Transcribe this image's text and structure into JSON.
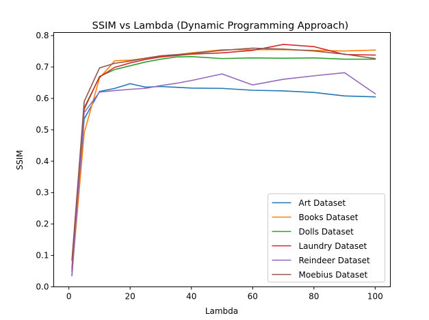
{
  "chart_data": {
    "type": "line",
    "title": "SSIM vs Lambda (Dynamic Programming Approach)",
    "xlabel": "Lambda",
    "ylabel": "SSIM",
    "xlim": [
      -4.95,
      104.95
    ],
    "ylim": [
      0.0,
      0.81
    ],
    "xticks": [
      "0",
      "20",
      "40",
      "60",
      "80",
      "100"
    ],
    "yticks": [
      "0.0",
      "0.1",
      "0.2",
      "0.3",
      "0.4",
      "0.5",
      "0.6",
      "0.7",
      "0.8"
    ],
    "grid": false,
    "legend_position": "lower right",
    "series": [
      {
        "name": "Art Dataset",
        "color": "#1f77b4",
        "x": [
          1,
          5,
          10,
          15,
          20,
          25,
          30,
          40,
          50,
          60,
          70,
          80,
          90,
          100
        ],
        "y": [
          0.038,
          0.535,
          0.622,
          0.632,
          0.647,
          0.636,
          0.638,
          0.633,
          0.632,
          0.626,
          0.624,
          0.619,
          0.608,
          0.605
        ]
      },
      {
        "name": "Books Dataset",
        "color": "#ff7f0e",
        "x": [
          1,
          5,
          10,
          15,
          20,
          25,
          30,
          40,
          50,
          60,
          70,
          80,
          90,
          100
        ],
        "y": [
          0.04,
          0.49,
          0.665,
          0.72,
          0.722,
          0.728,
          0.733,
          0.745,
          0.755,
          0.755,
          0.755,
          0.753,
          0.751,
          0.754
        ]
      },
      {
        "name": "Dolls Dataset",
        "color": "#2ca02c",
        "x": [
          1,
          5,
          10,
          15,
          20,
          25,
          30,
          35,
          40,
          50,
          60,
          70,
          80,
          90,
          100
        ],
        "y": [
          0.06,
          0.565,
          0.67,
          0.692,
          0.704,
          0.716,
          0.725,
          0.732,
          0.733,
          0.727,
          0.729,
          0.728,
          0.729,
          0.725,
          0.725
        ]
      },
      {
        "name": "Laundry Dataset",
        "color": "#d62728",
        "x": [
          1,
          5,
          10,
          15,
          20,
          25,
          30,
          40,
          50,
          60,
          70,
          80,
          90,
          100
        ],
        "y": [
          0.05,
          0.57,
          0.668,
          0.699,
          0.713,
          0.724,
          0.732,
          0.741,
          0.745,
          0.753,
          0.772,
          0.765,
          0.74,
          0.738
        ]
      },
      {
        "name": "Reindeer Dataset",
        "color": "#9467bd",
        "x": [
          1,
          5,
          10,
          15,
          20,
          25,
          30,
          35,
          40,
          50,
          60,
          70,
          80,
          90,
          100
        ],
        "y": [
          0.035,
          0.555,
          0.62,
          0.625,
          0.629,
          0.632,
          0.641,
          0.648,
          0.657,
          0.678,
          0.643,
          0.661,
          0.672,
          0.682,
          0.615
        ]
      },
      {
        "name": "Moebius Dataset",
        "color": "#8c564b",
        "x": [
          1,
          5,
          10,
          15,
          20,
          25,
          30,
          40,
          50,
          60,
          70,
          80,
          90,
          100
        ],
        "y": [
          0.085,
          0.59,
          0.697,
          0.712,
          0.719,
          0.728,
          0.736,
          0.743,
          0.753,
          0.76,
          0.757,
          0.751,
          0.741,
          0.727
        ]
      }
    ]
  }
}
